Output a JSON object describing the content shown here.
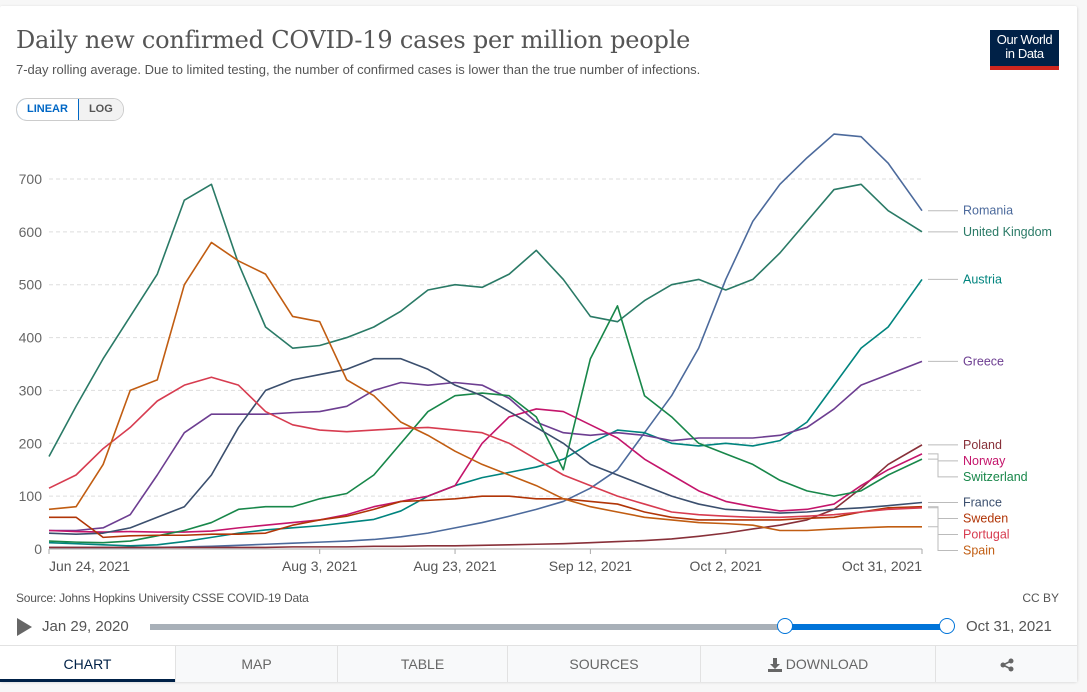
{
  "header": {
    "title": "Daily new confirmed COVID-19 cases per million people",
    "subtitle": "7-day rolling average. Due to limited testing, the number of confirmed cases is lower than the true number of infections.",
    "logo_line1": "Our World",
    "logo_line2": "in Data"
  },
  "scale_toggle": {
    "linear_label": "LINEAR",
    "log_label": "LOG",
    "selected": "LINEAR"
  },
  "footer": {
    "source": "Source: Johns Hopkins University CSSE COVID-19 Data",
    "license": "CC BY"
  },
  "timeline": {
    "play_icon": "play-icon",
    "start_label": "Jan 29, 2020",
    "end_label": "Oct 31, 2021",
    "selection_start_fraction": 0.797,
    "selection_end_fraction": 1.0
  },
  "tabs": [
    {
      "label": "CHART",
      "active": true
    },
    {
      "label": "MAP",
      "active": false
    },
    {
      "label": "TABLE",
      "active": false
    },
    {
      "label": "SOURCES",
      "active": false
    },
    {
      "label": "DOWNLOAD",
      "icon": "download-icon",
      "active": false
    },
    {
      "label": "",
      "icon": "share-icon",
      "active": false
    }
  ],
  "chart_data": {
    "type": "line",
    "title": "Daily new confirmed COVID-19 cases per million people",
    "subtitle": "7-day rolling average. Due to limited testing, the number of confirmed cases is lower than the true number of infections.",
    "xlabel": "",
    "ylabel": "",
    "x_unit": "days since Jun 24, 2021",
    "x_range": [
      0,
      129
    ],
    "ylim": [
      0,
      700
    ],
    "yticks": [
      0,
      100,
      200,
      300,
      400,
      500,
      600,
      700
    ],
    "xticks": [
      {
        "day": 0,
        "label": "Jun 24, 2021"
      },
      {
        "day": 40,
        "label": "Aug 3, 2021"
      },
      {
        "day": 60,
        "label": "Aug 23, 2021"
      },
      {
        "day": 80,
        "label": "Sep 12, 2021"
      },
      {
        "day": 100,
        "label": "Oct 2, 2021"
      },
      {
        "day": 129,
        "label": "Oct 31, 2021"
      }
    ],
    "grid": "horizontal-dashed",
    "legend_placement": "right (line-end labels)",
    "x": [
      0,
      4,
      8,
      12,
      16,
      20,
      24,
      28,
      32,
      36,
      40,
      44,
      48,
      52,
      56,
      60,
      64,
      68,
      72,
      76,
      80,
      84,
      88,
      92,
      96,
      100,
      104,
      108,
      112,
      116,
      120,
      124,
      129
    ],
    "series": [
      {
        "name": "Romania",
        "color": "#4c6a9c",
        "values": [
          3,
          3,
          3,
          3,
          3,
          4,
          5,
          7,
          9,
          11,
          13,
          15,
          18,
          23,
          30,
          40,
          50,
          62,
          75,
          90,
          115,
          150,
          220,
          290,
          380,
          510,
          620,
          690,
          740,
          785,
          780,
          730,
          640
        ]
      },
      {
        "name": "United Kingdom",
        "color": "#2a7a66",
        "values": [
          175,
          270,
          360,
          440,
          520,
          660,
          690,
          540,
          420,
          380,
          385,
          400,
          420,
          450,
          490,
          500,
          495,
          520,
          565,
          510,
          440,
          430,
          470,
          500,
          510,
          490,
          510,
          560,
          620,
          680,
          690,
          640,
          600
        ]
      },
      {
        "name": "Austria",
        "color": "#00847e",
        "values": [
          12,
          10,
          8,
          6,
          8,
          14,
          22,
          30,
          36,
          40,
          44,
          50,
          56,
          72,
          100,
          120,
          135,
          145,
          155,
          170,
          200,
          225,
          220,
          200,
          195,
          200,
          195,
          205,
          240,
          310,
          380,
          420,
          510
        ]
      },
      {
        "name": "Greece",
        "color": "#6d3e91",
        "values": [
          35,
          35,
          40,
          65,
          140,
          220,
          255,
          255,
          255,
          258,
          260,
          270,
          300,
          315,
          310,
          315,
          310,
          285,
          240,
          220,
          215,
          220,
          215,
          205,
          210,
          210,
          210,
          215,
          230,
          265,
          310,
          330,
          355
        ]
      },
      {
        "name": "Poland",
        "color": "#883039",
        "values": [
          3,
          3,
          3,
          3,
          3,
          3,
          3,
          3,
          3,
          4,
          4,
          4,
          5,
          5,
          6,
          6,
          7,
          8,
          9,
          10,
          12,
          14,
          16,
          19,
          24,
          30,
          38,
          45,
          55,
          75,
          115,
          160,
          197
        ]
      },
      {
        "name": "Norway",
        "color": "#c4156b",
        "values": [
          35,
          33,
          32,
          33,
          32,
          32,
          34,
          40,
          45,
          50,
          55,
          65,
          80,
          90,
          100,
          120,
          200,
          250,
          265,
          260,
          235,
          210,
          170,
          140,
          110,
          90,
          80,
          72,
          75,
          85,
          120,
          150,
          180
        ]
      },
      {
        "name": "Switzerland",
        "color": "#18874a",
        "values": [
          15,
          13,
          12,
          15,
          25,
          35,
          50,
          75,
          80,
          80,
          95,
          105,
          140,
          200,
          260,
          290,
          295,
          290,
          250,
          150,
          360,
          460,
          290,
          250,
          200,
          180,
          160,
          130,
          110,
          100,
          110,
          140,
          170
        ]
      },
      {
        "name": "France",
        "color": "#3b4f6e",
        "values": [
          30,
          28,
          30,
          40,
          60,
          80,
          140,
          230,
          300,
          320,
          330,
          340,
          360,
          360,
          340,
          310,
          290,
          260,
          230,
          200,
          160,
          140,
          120,
          100,
          85,
          75,
          72,
          68,
          70,
          75,
          78,
          82,
          88
        ]
      },
      {
        "name": "Sweden",
        "color": "#b13507",
        "values": [
          60,
          60,
          22,
          25,
          26,
          26,
          28,
          28,
          30,
          45,
          55,
          62,
          75,
          90,
          92,
          95,
          100,
          100,
          95,
          95,
          90,
          85,
          70,
          60,
          55,
          55,
          55,
          55,
          58,
          60,
          70,
          78,
          80
        ]
      },
      {
        "name": "Portugal",
        "color": "#d73c50",
        "values": [
          115,
          140,
          190,
          230,
          280,
          310,
          325,
          310,
          260,
          235,
          225,
          222,
          225,
          228,
          230,
          225,
          220,
          200,
          170,
          140,
          120,
          100,
          85,
          70,
          65,
          62,
          60,
          60,
          62,
          65,
          70,
          75,
          78
        ]
      },
      {
        "name": "Spain",
        "color": "#c15d12",
        "values": [
          75,
          80,
          160,
          300,
          320,
          500,
          580,
          545,
          520,
          440,
          430,
          320,
          290,
          240,
          215,
          185,
          160,
          140,
          120,
          95,
          80,
          70,
          60,
          55,
          50,
          48,
          45,
          35,
          35,
          38,
          40,
          42,
          42
        ]
      }
    ]
  }
}
